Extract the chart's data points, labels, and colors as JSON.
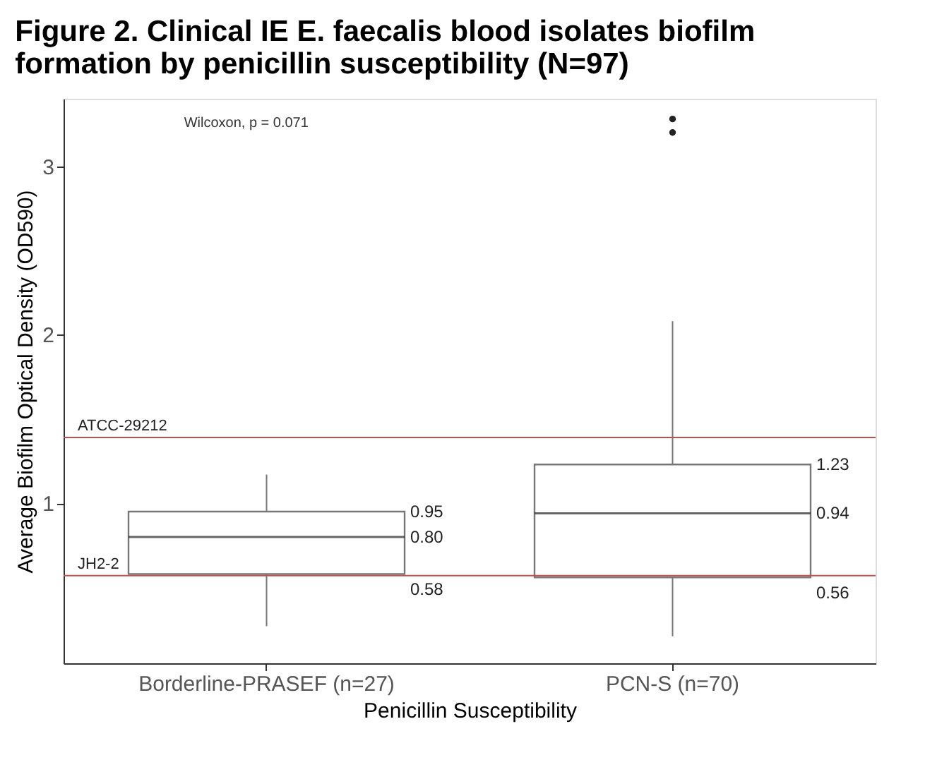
{
  "chart_data": {
    "type": "box",
    "title": "Figure 2. Clinical IE E. faecalis blood isolates biofilm formation by penicillin susceptibility (N=97)",
    "xlabel": "Penicillin Susceptibility",
    "ylabel": "Average Biofilm Optical Density (OD590)",
    "categories": [
      "Borderline-PRASEF (n=27)",
      "PCN-S (n=70)"
    ],
    "boxes": [
      {
        "low": 0.27,
        "q1": 0.58,
        "median": 0.8,
        "q3": 0.95,
        "high": 1.17
      },
      {
        "low": 0.21,
        "q1": 0.56,
        "median": 0.94,
        "q3": 1.23,
        "high": 2.08,
        "outliers": [
          3.2,
          3.28
        ]
      }
    ],
    "ylim": [
      0.05,
      3.4
    ],
    "yticks": [
      1,
      2,
      3
    ],
    "grid": false,
    "ref_lines": [
      {
        "axis": "y",
        "value": 1.39,
        "label": "ATCC-29212",
        "color": "#c0504d"
      },
      {
        "axis": "y",
        "value": 0.57,
        "label": "JH2-2",
        "color": "#c0504d"
      }
    ],
    "annotations": [
      "Wilcoxon, p = 0.071",
      "0.95",
      "0.80",
      "0.58",
      "1.23",
      "0.94",
      "0.56"
    ]
  }
}
